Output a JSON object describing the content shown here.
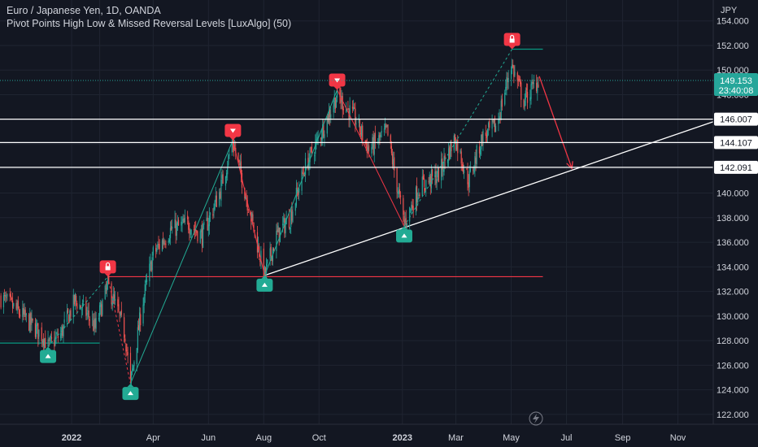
{
  "header": {
    "title": "Euro / Japanese Yen, 1D, OANDA",
    "indicator": "Pivot Points High Low & Missed Reversal Levels [LuxAlgo] (50)"
  },
  "colors": {
    "background": "#131722",
    "up": "#26a69a",
    "down": "#ef5350",
    "pivot_high": "#f23645",
    "pivot_low": "#22ab94",
    "missed_level": "#089981",
    "trendline": "#ffffff",
    "projection": "#f23645"
  },
  "chart_data": {
    "type": "candlestick",
    "currency_label": "JPY",
    "y_axis_ticks": [
      122,
      124,
      126,
      128,
      130,
      132,
      134,
      136,
      138,
      140,
      142,
      144,
      146,
      148,
      150,
      152,
      154
    ],
    "y_axis_tick_labels": [
      "122.000",
      "124.000",
      "126.000",
      "128.000",
      "130.000",
      "132.000",
      "134.000",
      "136.000",
      "138.000",
      "140.000",
      "142.000",
      "144.000",
      "146.000",
      "148.000",
      "150.000",
      "152.000",
      "154.000"
    ],
    "ylim": [
      121.2,
      155.7
    ],
    "x_axis_ticks": [
      {
        "date": "2022-01-01",
        "label": "2022"
      },
      {
        "date": "2022-02-01",
        "label": ""
      },
      {
        "date": "2022-04-01",
        "label": "Apr"
      },
      {
        "date": "2022-06-01",
        "label": "Jun"
      },
      {
        "date": "2022-08-01",
        "label": "Aug"
      },
      {
        "date": "2022-10-01",
        "label": "Oct"
      },
      {
        "date": "2023-01-01",
        "label": "2023"
      },
      {
        "date": "2023-03-01",
        "label": "Mar"
      },
      {
        "date": "2023-05-01",
        "label": "May"
      },
      {
        "date": "2023-07-01",
        "label": "Jul"
      },
      {
        "date": "2023-09-01",
        "label": "Sep"
      },
      {
        "date": "2023-11-01",
        "label": "Nov"
      }
    ],
    "xlim": [
      "2021-10-14",
      "2023-12-10"
    ],
    "price_path": [
      [
        "2021-10-15",
        131.5
      ],
      [
        "2021-11-01",
        130.5
      ],
      [
        "2021-11-15",
        129.5
      ],
      [
        "2021-12-01",
        128.3
      ],
      [
        "2021-12-06",
        127.5
      ],
      [
        "2021-12-20",
        128.5
      ],
      [
        "2022-01-05",
        131.3
      ],
      [
        "2022-01-20",
        130.0
      ],
      [
        "2022-01-27",
        129.0
      ],
      [
        "2022-02-10",
        132.5
      ],
      [
        "2022-02-20",
        130.5
      ],
      [
        "2022-03-01",
        128.5
      ],
      [
        "2022-03-07",
        124.5
      ],
      [
        "2022-03-20",
        131.0
      ],
      [
        "2022-04-01",
        135.0
      ],
      [
        "2022-04-20",
        137.0
      ],
      [
        "2022-05-10",
        137.5
      ],
      [
        "2022-05-25",
        136.5
      ],
      [
        "2022-06-13",
        140.0
      ],
      [
        "2022-06-28",
        144.2
      ],
      [
        "2022-07-15",
        139.0
      ],
      [
        "2022-08-02",
        133.3
      ],
      [
        "2022-08-15",
        136.5
      ],
      [
        "2022-08-30",
        138.0
      ],
      [
        "2022-09-15",
        142.0
      ],
      [
        "2022-10-01",
        144.5
      ],
      [
        "2022-10-21",
        148.0
      ],
      [
        "2022-11-10",
        146.0
      ],
      [
        "2022-11-25",
        143.5
      ],
      [
        "2022-12-15",
        145.0
      ],
      [
        "2023-01-03",
        137.5
      ],
      [
        "2023-01-20",
        140.5
      ],
      [
        "2023-02-10",
        141.5
      ],
      [
        "2023-02-28",
        144.5
      ],
      [
        "2023-03-15",
        141.0
      ],
      [
        "2023-03-30",
        144.5
      ],
      [
        "2023-04-15",
        145.5
      ],
      [
        "2023-05-01",
        150.5
      ],
      [
        "2023-05-15",
        147.5
      ],
      [
        "2023-05-31",
        149.2
      ]
    ],
    "pivots": [
      {
        "type": "low",
        "date": "2021-12-06",
        "value": 127.5
      },
      {
        "type": "high_missed",
        "date": "2022-02-10",
        "value": 133.2
      },
      {
        "type": "low",
        "date": "2022-03-07",
        "value": 124.5
      },
      {
        "type": "high",
        "date": "2022-06-28",
        "value": 144.3
      },
      {
        "type": "low",
        "date": "2022-08-02",
        "value": 133.3
      },
      {
        "type": "high",
        "date": "2022-10-21",
        "value": 148.4
      },
      {
        "type": "low",
        "date": "2023-01-03",
        "value": 137.3
      },
      {
        "type": "high_missed",
        "date": "2023-05-02",
        "value": 151.7
      }
    ],
    "missed_levels": [
      {
        "from": "2021-10-14",
        "to": "2022-02-01",
        "value": 127.8,
        "color": "#089981"
      },
      {
        "from": "2022-02-10",
        "to": "2023-06-05",
        "value": 133.2,
        "color": "#f23645"
      },
      {
        "from": "2023-05-02",
        "to": "2023-06-05",
        "value": 151.7,
        "color": "#089981"
      }
    ],
    "trendline": {
      "from": [
        "2022-08-02",
        133.3
      ],
      "to": [
        "2023-12-10",
        145.8
      ]
    },
    "projection": {
      "from": [
        "2023-06-01",
        149.5
      ],
      "to": [
        "2023-07-07",
        142.0
      ]
    },
    "horizontal_levels": [
      {
        "value": 146.007,
        "label": "146.007"
      },
      {
        "value": 144.107,
        "label": "144.107"
      },
      {
        "value": 142.091,
        "label": "142.091"
      }
    ],
    "last_price": {
      "value": 149.153,
      "label": "149.153",
      "countdown": "23:40:08"
    }
  }
}
